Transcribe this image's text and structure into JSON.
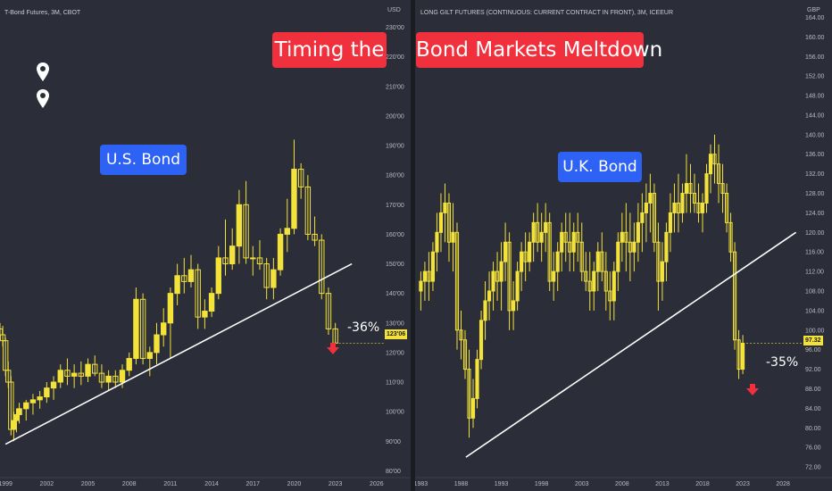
{
  "left_chart": {
    "title": "T-Bond Futures, 3M, CBOT",
    "currency": "USD",
    "banner": "U.S. Bond",
    "headline": "Timing the",
    "change": "-36%",
    "last_price": "123'06"
  },
  "right_chart": {
    "title": "LONG GILT FUTURES (CONTINUOUS: CURRENT CONTRACT IN FRONT), 3M, ICEEUR",
    "currency": "GBP",
    "banner": "U.K. Bond",
    "headline": "Bond Markets Meltdown",
    "change": "-35%",
    "last_price": "97.32"
  },
  "colors": {
    "candle": "#f3e23a",
    "background": "#2b2e38",
    "red": "#f0303d",
    "blue": "#2d62f5",
    "trendline": "#ffffff"
  },
  "icons": [
    "map-pin-icon",
    "map-pin-icon",
    "down-arrow-icon"
  ],
  "chart_data": [
    {
      "type": "candlestick",
      "title": "T-Bond Futures, 3M, CBOT",
      "ylabel": "USD",
      "x_ticks": [
        "1999",
        "2002",
        "2005",
        "2008",
        "2011",
        "2014",
        "2017",
        "2020",
        "2023",
        "2026"
      ],
      "y_ticks": [
        "80'00",
        "90'00",
        "100'00",
        "110'00",
        "120'00",
        "130'00",
        "140'00",
        "150'00",
        "160'00",
        "170'00",
        "180'00",
        "190'00",
        "200'00",
        "210'00",
        "220'00",
        "230'00"
      ],
      "xlim": [
        1998.6,
        2026.4
      ],
      "ylim": [
        78,
        235
      ],
      "series": [
        {
          "values": [
            [
              1998.6,
              128,
              130,
              124,
              126
            ],
            [
              1998.8,
              126,
              129,
              122,
              124
            ],
            [
              1999.0,
              124,
              125,
              112,
              114
            ],
            [
              1999.2,
              114,
              117,
              108,
              110
            ],
            [
              1999.4,
              110,
              112,
              92,
              94
            ],
            [
              1999.6,
              94,
              100,
              90,
              97
            ],
            [
              1999.8,
              97,
              101,
              93,
              99
            ],
            [
              2000.0,
              99,
              103,
              96,
              101
            ],
            [
              2000.5,
              101,
              104,
              97,
              103
            ],
            [
              2001.0,
              103,
              106,
              99,
              104
            ],
            [
              2001.5,
              104,
              107,
              101,
              105
            ],
            [
              2002.0,
              105,
              110,
              103,
              108
            ],
            [
              2002.5,
              108,
              112,
              104,
              110
            ],
            [
              2003.0,
              110,
              116,
              108,
              114
            ],
            [
              2003.5,
              114,
              118,
              109,
              112
            ],
            [
              2004.0,
              112,
              116,
              108,
              113
            ],
            [
              2004.5,
              113,
              117,
              109,
              112
            ],
            [
              2005.0,
              112,
              118,
              110,
              116
            ],
            [
              2005.5,
              116,
              119,
              112,
              113
            ],
            [
              2006.0,
              113,
              116,
              108,
              110
            ],
            [
              2006.5,
              110,
              114,
              107,
              112
            ],
            [
              2007.0,
              112,
              114,
              108,
              110
            ],
            [
              2007.5,
              110,
              116,
              108,
              114
            ],
            [
              2008.0,
              114,
              120,
              112,
              118
            ],
            [
              2008.5,
              118,
              142,
              116,
              138
            ],
            [
              2009.0,
              138,
              140,
              116,
              118
            ],
            [
              2009.5,
              118,
              122,
              112,
              120
            ],
            [
              2010.0,
              120,
              130,
              116,
              126
            ],
            [
              2010.5,
              126,
              135,
              122,
              130
            ],
            [
              2011.0,
              130,
              142,
              118,
              140
            ],
            [
              2011.5,
              140,
              150,
              136,
              146
            ],
            [
              2012.0,
              146,
              152,
              140,
              144
            ],
            [
              2012.5,
              144,
              153,
              142,
              148
            ],
            [
              2013.0,
              148,
              150,
              128,
              132
            ],
            [
              2013.5,
              132,
              138,
              128,
              134
            ],
            [
              2014.0,
              134,
              142,
              132,
              140
            ],
            [
              2014.5,
              140,
              156,
              138,
              152
            ],
            [
              2015.0,
              152,
              165,
              146,
              150
            ],
            [
              2015.5,
              150,
              162,
              148,
              156
            ],
            [
              2016.0,
              156,
              175,
              150,
              170
            ],
            [
              2016.5,
              170,
              178,
              150,
              152
            ],
            [
              2017.0,
              152,
              156,
              146,
              152
            ],
            [
              2017.5,
              152,
              158,
              148,
              150
            ],
            [
              2018.0,
              150,
              152,
              138,
              142
            ],
            [
              2018.5,
              142,
              152,
              138,
              148
            ],
            [
              2019.0,
              148,
              162,
              146,
              160
            ],
            [
              2019.5,
              160,
              172,
              154,
              162
            ],
            [
              2020.0,
              162,
              192,
              160,
              182
            ],
            [
              2020.5,
              182,
              184,
              172,
              176
            ],
            [
              2021.0,
              176,
              180,
              158,
              160
            ],
            [
              2021.5,
              160,
              166,
              156,
              158
            ],
            [
              2022.0,
              158,
              160,
              138,
              140
            ],
            [
              2022.5,
              140,
              142,
              126,
              128
            ],
            [
              2023.0,
              128,
              130,
              123,
              123.2
            ]
          ]
        }
      ],
      "trendline": [
        [
          1999.0,
          89
        ],
        [
          2024.2,
          150
        ]
      ],
      "annotations": [
        "U.S. Bond",
        "-36%"
      ]
    },
    {
      "type": "candlestick",
      "title": "LONG GILT FUTURES (CONTINUOUS: CURRENT CONTRACT IN FRONT), 3M, ICEEUR",
      "ylabel": "GBP",
      "x_ticks": [
        "1983",
        "1988",
        "1993",
        "1998",
        "2003",
        "2008",
        "2013",
        "2018",
        "2023",
        "2028"
      ],
      "y_ticks": [
        "72.00",
        "76.00",
        "80.00",
        "84.00",
        "88.00",
        "92.00",
        "96.00",
        "100.00",
        "104.00",
        "108.00",
        "112.00",
        "116.00",
        "120.00",
        "124.00",
        "128.00",
        "132.00",
        "136.00",
        "140.00",
        "144.00",
        "148.00",
        "152.00",
        "156.00",
        "160.00",
        "164.00"
      ],
      "xlim": [
        1982.4,
        2030.2
      ],
      "ylim": [
        70,
        165
      ],
      "series": [
        {
          "values": [
            [
              1983.0,
              108,
              112,
              104,
              110
            ],
            [
              1983.5,
              110,
              114,
              106,
              112
            ],
            [
              1984.0,
              112,
              116,
              106,
              110
            ],
            [
              1984.5,
              110,
              118,
              108,
              116
            ],
            [
              1985.0,
              116,
              124,
              112,
              120
            ],
            [
              1985.5,
              120,
              128,
              116,
              124
            ],
            [
              1986.0,
              124,
              130,
              118,
              126
            ],
            [
              1986.5,
              126,
              128,
              114,
              118
            ],
            [
              1987.0,
              118,
              126,
              112,
              120
            ],
            [
              1987.5,
              120,
              122,
              96,
              100
            ],
            [
              1988.0,
              100,
              104,
              94,
              98
            ],
            [
              1988.5,
              98,
              100,
              90,
              92
            ],
            [
              1989.0,
              92,
              96,
              78,
              82
            ],
            [
              1989.5,
              82,
              90,
              80,
              86
            ],
            [
              1990.0,
              86,
              96,
              84,
              94
            ],
            [
              1990.5,
              94,
              104,
              92,
              102
            ],
            [
              1991.0,
              102,
              110,
              98,
              106
            ],
            [
              1991.5,
              106,
              112,
              102,
              108
            ],
            [
              1992.0,
              108,
              114,
              104,
              112
            ],
            [
              1992.5,
              112,
              116,
              106,
              110
            ],
            [
              1993.0,
              110,
              118,
              104,
              114
            ],
            [
              1993.5,
              114,
              122,
              110,
              118
            ],
            [
              1994.0,
              118,
              120,
              100,
              104
            ],
            [
              1994.5,
              104,
              110,
              100,
              106
            ],
            [
              1995.0,
              106,
              114,
              104,
              112
            ],
            [
              1995.5,
              112,
              118,
              108,
              116
            ],
            [
              1996.0,
              116,
              120,
              110,
              114
            ],
            [
              1996.5,
              114,
              120,
              112,
              118
            ],
            [
              1997.0,
              118,
              124,
              114,
              122
            ],
            [
              1997.5,
              122,
              126,
              116,
              118
            ],
            [
              1998.0,
              118,
              124,
              114,
              120
            ],
            [
              1998.5,
              120,
              126,
              116,
              122
            ],
            [
              1999.0,
              122,
              124,
              108,
              110
            ],
            [
              1999.5,
              110,
              116,
              106,
              112
            ],
            [
              2000.0,
              112,
              118,
              108,
              116
            ],
            [
              2000.5,
              116,
              122,
              112,
              120
            ],
            [
              2001.0,
              120,
              124,
              114,
              118
            ],
            [
              2001.5,
              118,
              124,
              112,
              116
            ],
            [
              2002.0,
              116,
              122,
              112,
              120
            ],
            [
              2002.5,
              120,
              124,
              114,
              118
            ],
            [
              2003.0,
              118,
              122,
              110,
              112
            ],
            [
              2003.5,
              112,
              116,
              108,
              110
            ],
            [
              2004.0,
              110,
              116,
              104,
              108
            ],
            [
              2004.5,
              108,
              114,
              104,
              112
            ],
            [
              2005.0,
              112,
              118,
              108,
              116
            ],
            [
              2005.5,
              116,
              120,
              110,
              112
            ],
            [
              2006.0,
              112,
              116,
              104,
              108
            ],
            [
              2006.5,
              108,
              112,
              102,
              106
            ],
            [
              2007.0,
              106,
              114,
              102,
              112
            ],
            [
              2007.5,
              112,
              120,
              108,
              118
            ],
            [
              2008.0,
              118,
              124,
              114,
              120
            ],
            [
              2008.5,
              120,
              126,
              112,
              118
            ],
            [
              2009.0,
              118,
              124,
              110,
              116
            ],
            [
              2009.5,
              116,
              122,
              112,
              118
            ],
            [
              2010.0,
              118,
              126,
              114,
              122
            ],
            [
              2010.5,
              122,
              128,
              116,
              124
            ],
            [
              2011.0,
              124,
              130,
              118,
              126
            ],
            [
              2011.5,
              126,
              132,
              120,
              128
            ],
            [
              2012.0,
              128,
              130,
              116,
              118
            ],
            [
              2012.5,
              118,
              122,
              104,
              110
            ],
            [
              2013.0,
              110,
              118,
              106,
              114
            ],
            [
              2013.5,
              114,
              122,
              110,
              120
            ],
            [
              2014.0,
              120,
              128,
              116,
              124
            ],
            [
              2014.5,
              124,
              130,
              120,
              126
            ],
            [
              2015.0,
              126,
              132,
              120,
              124
            ],
            [
              2015.5,
              124,
              130,
              122,
              128
            ],
            [
              2016.0,
              128,
              136,
              124,
              130
            ],
            [
              2016.5,
              130,
              134,
              124,
              128
            ],
            [
              2017.0,
              128,
              132,
              124,
              126
            ],
            [
              2017.5,
              126,
              130,
              122,
              124
            ],
            [
              2018.0,
              124,
              128,
              120,
              126
            ],
            [
              2018.5,
              126,
              134,
              124,
              132
            ],
            [
              2019.0,
              132,
              138,
              128,
              136
            ],
            [
              2019.5,
              136,
              140,
              130,
              134
            ],
            [
              2020.0,
              134,
              138,
              126,
              130
            ],
            [
              2020.5,
              130,
              134,
              124,
              128
            ],
            [
              2021.0,
              128,
              130,
              120,
              122
            ],
            [
              2021.5,
              122,
              124,
              114,
              116
            ],
            [
              2022.0,
              116,
              118,
              96,
              98
            ],
            [
              2022.5,
              98,
              100,
              90,
              92
            ],
            [
              2023.0,
              92,
              99,
              91,
              97.32
            ]
          ]
        }
      ],
      "trendline": [
        [
          1988.6,
          74
        ],
        [
          2029.6,
          120
        ]
      ],
      "annotations": [
        "U.K. Bond",
        "-35%"
      ]
    }
  ]
}
